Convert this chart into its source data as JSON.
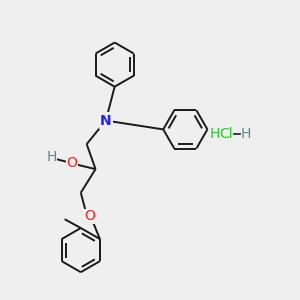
{
  "background_color": "#efefef",
  "bond_color": "#1a1a1a",
  "N_color": "#2020ff",
  "O_color": "#ff2020",
  "H_color": "#5a8a8a",
  "Cl_color": "#22cc22",
  "HCl_color": "#22cc22",
  "line_width": 1.4,
  "figsize": [
    3.0,
    3.0
  ],
  "dpi": 100,
  "xlim": [
    0,
    10
  ],
  "ylim": [
    0,
    10
  ]
}
